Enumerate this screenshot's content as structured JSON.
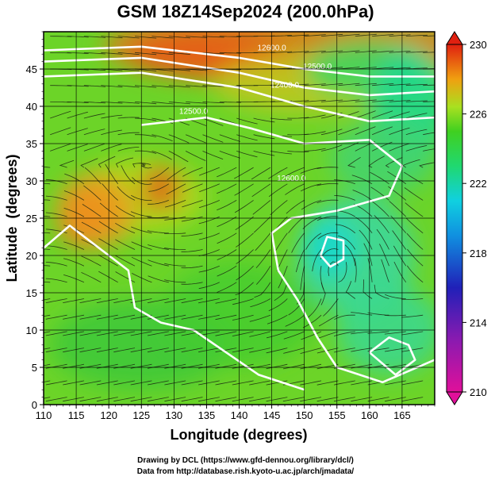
{
  "chart_data": {
    "type": "heatmap",
    "title": "GSM 18Z14Sep2024 (200.0hPa)",
    "xlabel": "Longitude (degrees)",
    "ylabel": "Latitude  (degrees)",
    "xlim": [
      110,
      170
    ],
    "ylim": [
      0,
      50
    ],
    "x_ticks": [
      "110",
      "115",
      "120",
      "125",
      "130",
      "135",
      "140",
      "145",
      "150",
      "155",
      "160",
      "165"
    ],
    "y_ticks": [
      "0",
      "5",
      "10",
      "15",
      "20",
      "25",
      "30",
      "35",
      "40",
      "45"
    ],
    "grid": true,
    "colorbar": {
      "min": 210,
      "max": 230,
      "ticks": [
        "210",
        "214",
        "218",
        "222",
        "226",
        "230"
      ],
      "colors": [
        "#e0109a",
        "#2020b8",
        "#10d0e0",
        "#30d030",
        "#f0a010",
        "#e02010"
      ]
    },
    "contours": [
      {
        "label": "12400.0"
      },
      {
        "label": "12500.0"
      },
      {
        "label": "12600.0"
      }
    ]
  },
  "credits": {
    "line1": "Drawing by DCL (https://www.gfd-dennou.org/library/dcl/)",
    "line2": "Data from http://database.rish.kyoto-u.ac.jp/arch/jmadata/"
  }
}
